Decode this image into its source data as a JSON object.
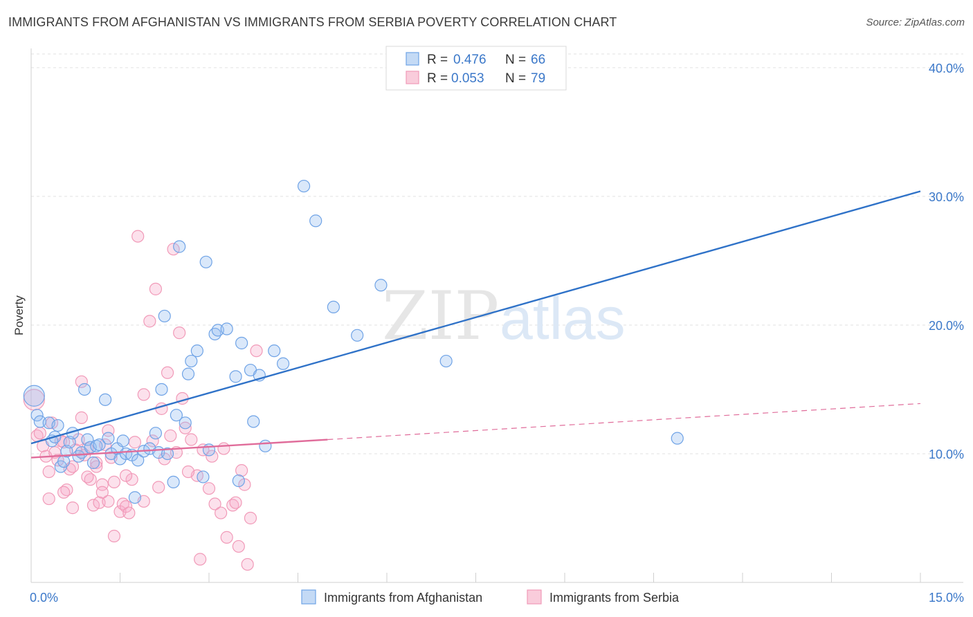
{
  "title": "IMMIGRANTS FROM AFGHANISTAN VS IMMIGRANTS FROM SERBIA POVERTY CORRELATION CHART",
  "source": "Source: ZipAtlas.com",
  "watermark": {
    "zip": "ZIP",
    "atlas": "atlas"
  },
  "legend": {
    "r_label": "R =",
    "n_label": "N =",
    "rows": [
      {
        "r": "0.476",
        "n": "66"
      },
      {
        "r": "0.053",
        "n": "79"
      }
    ]
  },
  "chart_data": {
    "type": "scatter",
    "title": "IMMIGRANTS FROM AFGHANISTAN VS IMMIGRANTS FROM SERBIA POVERTY CORRELATION CHART",
    "xlabel": "",
    "ylabel": "Poverty",
    "xlim": [
      0,
      15
    ],
    "ylim": [
      0,
      41.5
    ],
    "x_tick_labels": [
      "0.0%",
      "15.0%"
    ],
    "y_ticks": [
      10,
      20,
      30,
      40
    ],
    "y_tick_labels": [
      "10.0%",
      "20.0%",
      "30.0%",
      "40.0%"
    ],
    "grid": true,
    "series": [
      {
        "name": "Immigrants from Afghanistan",
        "color": "#6fa3e6",
        "line_color": "#2f72c8",
        "trend": {
          "x": [
            0,
            15
          ],
          "y": [
            10.8,
            30.4
          ],
          "dashed_from": null
        },
        "points": [
          [
            0.05,
            14.5
          ],
          [
            0.1,
            13.0
          ],
          [
            0.15,
            12.5
          ],
          [
            0.3,
            12.4
          ],
          [
            0.35,
            11.0
          ],
          [
            0.4,
            11.3
          ],
          [
            0.45,
            12.2
          ],
          [
            0.5,
            9.0
          ],
          [
            0.55,
            9.4
          ],
          [
            0.6,
            10.2
          ],
          [
            0.65,
            10.9
          ],
          [
            0.7,
            11.6
          ],
          [
            0.8,
            9.8
          ],
          [
            0.85,
            10.1
          ],
          [
            0.9,
            15.0
          ],
          [
            0.95,
            11.1
          ],
          [
            1.0,
            10.5
          ],
          [
            1.05,
            9.3
          ],
          [
            1.1,
            10.6
          ],
          [
            1.15,
            10.7
          ],
          [
            1.25,
            14.2
          ],
          [
            1.3,
            11.2
          ],
          [
            1.35,
            10.0
          ],
          [
            1.45,
            10.4
          ],
          [
            1.5,
            9.6
          ],
          [
            1.55,
            11.0
          ],
          [
            1.6,
            10.0
          ],
          [
            1.7,
            9.9
          ],
          [
            1.75,
            6.6
          ],
          [
            1.8,
            9.5
          ],
          [
            1.9,
            10.2
          ],
          [
            2.0,
            10.4
          ],
          [
            2.1,
            11.6
          ],
          [
            2.15,
            10.1
          ],
          [
            2.2,
            15.0
          ],
          [
            2.25,
            20.7
          ],
          [
            2.3,
            10.0
          ],
          [
            2.4,
            7.8
          ],
          [
            2.45,
            13.0
          ],
          [
            2.5,
            26.1
          ],
          [
            2.6,
            12.4
          ],
          [
            2.65,
            16.2
          ],
          [
            2.7,
            17.2
          ],
          [
            2.8,
            18.0
          ],
          [
            2.9,
            8.2
          ],
          [
            2.95,
            24.9
          ],
          [
            3.0,
            10.3
          ],
          [
            3.1,
            19.3
          ],
          [
            3.15,
            19.6
          ],
          [
            3.3,
            19.7
          ],
          [
            3.45,
            16.0
          ],
          [
            3.5,
            7.9
          ],
          [
            3.55,
            18.6
          ],
          [
            3.7,
            16.5
          ],
          [
            3.75,
            12.5
          ],
          [
            3.85,
            16.1
          ],
          [
            3.95,
            10.6
          ],
          [
            4.1,
            18.0
          ],
          [
            4.25,
            17.0
          ],
          [
            4.6,
            30.8
          ],
          [
            4.8,
            28.1
          ],
          [
            5.1,
            21.4
          ],
          [
            5.5,
            19.2
          ],
          [
            5.9,
            23.1
          ],
          [
            7.0,
            17.2
          ],
          [
            10.9,
            11.2
          ]
        ]
      },
      {
        "name": "Immigrants from Serbia",
        "color": "#f19ab8",
        "line_color": "#e06c9a",
        "trend": {
          "x": [
            0,
            15
          ],
          "y": [
            9.7,
            13.9
          ],
          "dashed_from": 5.0
        },
        "points": [
          [
            0.05,
            14.2
          ],
          [
            0.1,
            11.4
          ],
          [
            0.15,
            11.6
          ],
          [
            0.2,
            10.6
          ],
          [
            0.25,
            9.8
          ],
          [
            0.3,
            8.6
          ],
          [
            0.35,
            12.4
          ],
          [
            0.4,
            10.1
          ],
          [
            0.45,
            9.5
          ],
          [
            0.5,
            11.0
          ],
          [
            0.55,
            10.9
          ],
          [
            0.6,
            7.2
          ],
          [
            0.65,
            8.8
          ],
          [
            0.7,
            9.0
          ],
          [
            0.75,
            10.3
          ],
          [
            0.8,
            11.1
          ],
          [
            0.85,
            12.8
          ],
          [
            0.9,
            9.9
          ],
          [
            0.95,
            10.4
          ],
          [
            1.0,
            8.0
          ],
          [
            1.05,
            6.0
          ],
          [
            1.1,
            9.3
          ],
          [
            1.15,
            6.2
          ],
          [
            1.2,
            7.6
          ],
          [
            1.25,
            10.7
          ],
          [
            1.3,
            6.3
          ],
          [
            1.35,
            9.7
          ],
          [
            1.4,
            7.8
          ],
          [
            1.5,
            5.5
          ],
          [
            1.55,
            6.1
          ],
          [
            1.6,
            5.9
          ],
          [
            1.65,
            5.4
          ],
          [
            1.7,
            8.0
          ],
          [
            1.8,
            26.9
          ],
          [
            1.9,
            14.6
          ],
          [
            2.0,
            20.3
          ],
          [
            2.05,
            11.0
          ],
          [
            2.1,
            22.8
          ],
          [
            2.2,
            13.5
          ],
          [
            2.3,
            16.3
          ],
          [
            2.4,
            25.9
          ],
          [
            2.5,
            19.4
          ],
          [
            2.55,
            14.3
          ],
          [
            2.6,
            12.0
          ],
          [
            2.7,
            11.1
          ],
          [
            2.8,
            8.3
          ],
          [
            2.9,
            10.3
          ],
          [
            3.0,
            7.3
          ],
          [
            3.1,
            6.1
          ],
          [
            3.2,
            5.4
          ],
          [
            3.3,
            3.5
          ],
          [
            3.4,
            6.0
          ],
          [
            3.5,
            2.8
          ],
          [
            3.6,
            7.6
          ],
          [
            3.7,
            5.0
          ],
          [
            3.8,
            18.0
          ],
          [
            0.3,
            6.5
          ],
          [
            0.55,
            7.0
          ],
          [
            0.7,
            5.8
          ],
          [
            0.85,
            15.6
          ],
          [
            0.95,
            8.2
          ],
          [
            1.1,
            9.0
          ],
          [
            1.2,
            7.0
          ],
          [
            1.3,
            11.8
          ],
          [
            1.4,
            3.6
          ],
          [
            1.6,
            8.3
          ],
          [
            1.75,
            10.9
          ],
          [
            1.9,
            6.3
          ],
          [
            2.15,
            7.4
          ],
          [
            2.25,
            9.6
          ],
          [
            2.35,
            11.4
          ],
          [
            2.45,
            10.1
          ],
          [
            2.65,
            8.6
          ],
          [
            2.85,
            1.8
          ],
          [
            3.05,
            9.8
          ],
          [
            3.25,
            10.4
          ],
          [
            3.45,
            6.2
          ],
          [
            3.55,
            8.7
          ],
          [
            3.65,
            1.4
          ]
        ]
      }
    ]
  },
  "bottom_legend": [
    {
      "label": "Immigrants from Afghanistan"
    },
    {
      "label": "Immigrants from Serbia"
    }
  ]
}
